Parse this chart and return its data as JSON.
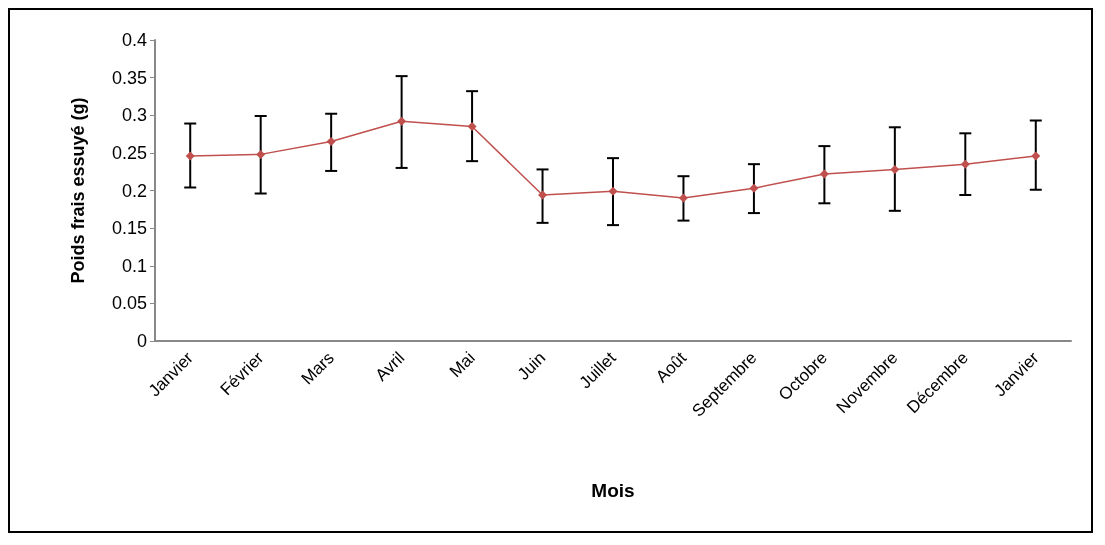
{
  "chart_data": {
    "type": "line",
    "xlabel": "Mois",
    "ylabel": "Poids frais essuyé (g)",
    "categories": [
      "Janvier",
      "Février",
      "Mars",
      "Avril",
      "Mai",
      "Juin",
      "Juillet",
      "Août",
      "Septembre",
      "Octobre",
      "Novembre",
      "Décembre",
      "Janvier"
    ],
    "series": [
      {
        "color": "#c0504d",
        "values": [
          0.246,
          0.248,
          0.265,
          0.292,
          0.285,
          0.194,
          0.199,
          0.19,
          0.203,
          0.222,
          0.228,
          0.235,
          0.246
        ],
        "errors": [
          [
            0.204,
            0.289
          ],
          [
            0.196,
            0.299
          ],
          [
            0.226,
            0.302
          ],
          [
            0.23,
            0.352
          ],
          [
            0.239,
            0.332
          ],
          [
            0.157,
            0.228
          ],
          [
            0.154,
            0.243
          ],
          [
            0.16,
            0.219
          ],
          [
            0.17,
            0.235
          ],
          [
            0.183,
            0.259
          ],
          [
            0.173,
            0.284
          ],
          [
            0.194,
            0.276
          ],
          [
            0.201,
            0.293
          ]
        ]
      }
    ],
    "ylim": [
      0,
      0.4
    ],
    "yticks": [
      0,
      0.05,
      0.1,
      0.15,
      0.2,
      0.25,
      0.3,
      0.35,
      0.4
    ],
    "marker": "diamond",
    "line_style": "solid",
    "grid": false
  }
}
